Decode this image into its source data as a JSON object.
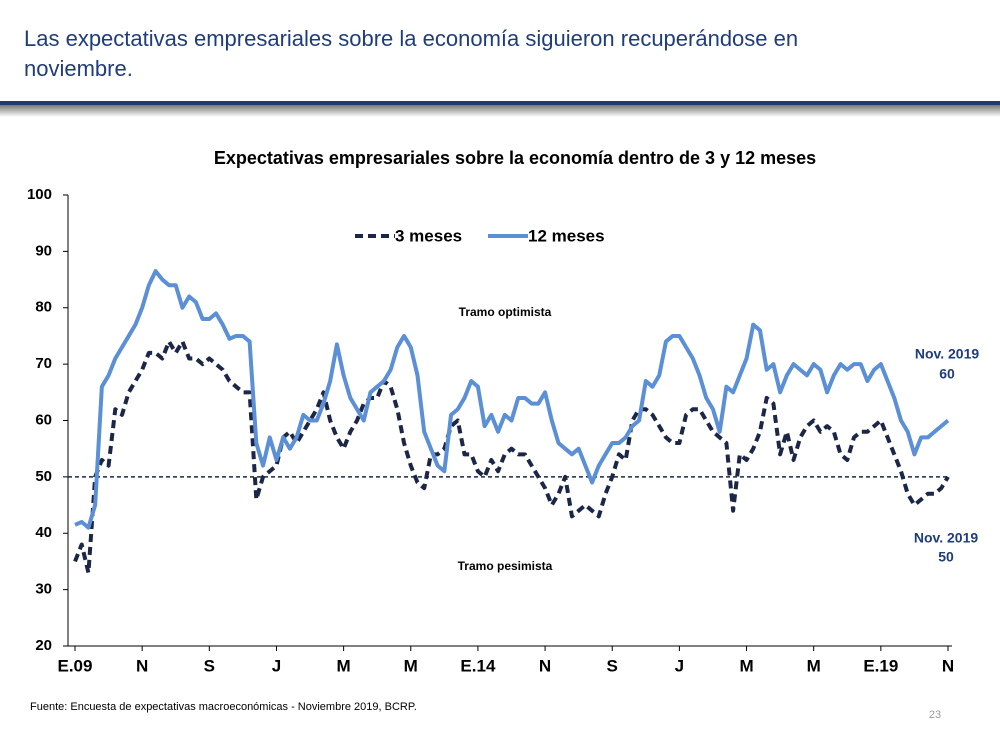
{
  "header": {
    "title": "Las expectativas empresariales sobre la economía siguieron recuperándose en noviembre."
  },
  "chart_data": {
    "type": "line",
    "title": "Expectativas empresariales sobre la economía dentro de 3 y 12 meses",
    "categories": [
      "E.09",
      null,
      null,
      null,
      null,
      null,
      null,
      null,
      null,
      null,
      "N",
      null,
      null,
      null,
      null,
      null,
      null,
      null,
      null,
      null,
      "S",
      null,
      null,
      null,
      null,
      null,
      null,
      null,
      null,
      null,
      "J",
      null,
      null,
      null,
      null,
      null,
      null,
      null,
      null,
      null,
      "M",
      null,
      null,
      null,
      null,
      null,
      null,
      null,
      null,
      null,
      "M",
      null,
      null,
      null,
      null,
      null,
      null,
      null,
      null,
      null,
      "E.14",
      null,
      null,
      null,
      null,
      null,
      null,
      null,
      null,
      null,
      "N",
      null,
      null,
      null,
      null,
      null,
      null,
      null,
      null,
      null,
      "S",
      null,
      null,
      null,
      null,
      null,
      null,
      null,
      null,
      null,
      "J",
      null,
      null,
      null,
      null,
      null,
      null,
      null,
      null,
      null,
      "M",
      null,
      null,
      null,
      null,
      null,
      null,
      null,
      null,
      null,
      "M",
      null,
      null,
      null,
      null,
      null,
      null,
      null,
      null,
      null,
      "E.19",
      null,
      null,
      null,
      null,
      null,
      null,
      null,
      null,
      null,
      "N"
    ],
    "series": [
      {
        "name": "3 meses",
        "color": "#1c2747",
        "dash": true,
        "values": [
          35,
          38,
          33,
          50,
          53,
          52,
          62,
          61,
          65,
          67,
          69,
          72,
          72,
          71,
          74,
          72,
          74,
          71,
          71,
          70,
          71,
          70,
          69,
          67,
          66,
          65,
          65,
          46,
          50,
          51,
          52,
          57,
          58,
          56,
          58,
          60,
          62,
          65,
          60,
          57,
          55,
          58,
          60,
          63,
          64,
          64,
          67,
          66,
          62,
          56,
          52,
          49,
          48,
          54,
          54,
          55,
          59,
          60,
          54,
          54,
          51,
          50,
          53,
          51,
          54,
          55,
          54,
          54,
          52,
          50,
          48,
          45,
          47,
          50,
          43,
          44,
          45,
          44,
          43,
          47,
          50,
          54,
          53,
          60,
          62,
          62,
          61,
          59,
          57,
          56,
          56,
          61,
          62,
          62,
          60,
          58,
          57,
          56,
          44,
          54,
          53,
          55,
          58,
          64,
          63,
          54,
          58,
          53,
          57,
          59,
          60,
          58,
          59,
          58,
          54,
          53,
          57,
          58,
          58,
          59,
          60,
          57,
          54,
          51,
          47,
          45,
          46,
          47,
          47,
          48,
          50
        ]
      },
      {
        "name": "12 meses",
        "color": "#5b8fd6",
        "dash": false,
        "values": [
          41.5,
          42,
          41,
          45,
          66,
          68,
          71,
          73,
          75,
          77,
          80,
          84,
          86.5,
          85,
          84,
          84,
          80,
          82,
          81,
          78,
          78,
          79,
          77,
          74.5,
          75,
          75,
          74,
          56,
          52,
          57,
          53,
          57,
          55,
          57,
          61,
          60,
          60,
          63,
          67,
          73.5,
          68,
          64,
          62,
          60,
          65,
          66,
          67,
          69,
          73,
          75,
          73,
          68,
          58,
          55,
          52,
          51,
          61,
          62,
          64,
          67,
          66,
          59,
          61,
          58,
          61,
          60,
          64,
          64,
          63,
          63,
          65,
          60,
          56,
          55,
          54,
          55,
          52,
          49,
          52,
          54,
          56,
          56,
          57,
          59,
          60,
          67,
          66,
          68,
          74,
          75,
          75,
          73,
          71,
          68,
          64,
          62,
          58,
          66,
          65,
          68,
          71,
          77,
          76,
          69,
          70,
          65,
          68,
          70,
          69,
          68,
          70,
          69,
          65,
          68,
          70,
          69,
          70,
          70,
          67,
          69,
          70,
          67,
          64,
          60,
          58,
          54,
          57,
          57,
          58,
          59,
          60
        ]
      }
    ],
    "ylim": [
      20,
      100
    ],
    "yticks": [
      20,
      30,
      40,
      50,
      60,
      70,
      80,
      90,
      100
    ],
    "reference_line": 50,
    "annotations": [
      "Tramo optimista",
      "Tramo pesimista",
      "Nov. 2019",
      "Nov. 2019"
    ]
  },
  "footer": {
    "source": "Fuente: Encuesta de expectativas macroeconómicas - Noviembre 2019, BCRP.",
    "page": "23"
  }
}
